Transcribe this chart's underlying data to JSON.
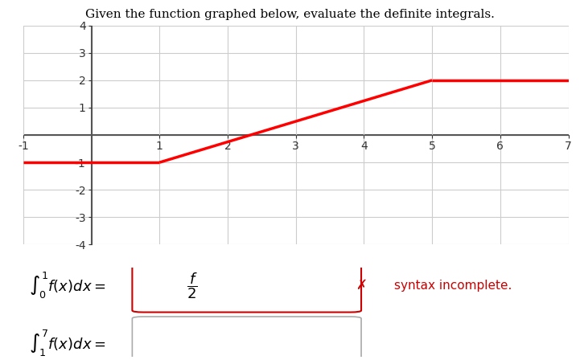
{
  "title": "Given the function graphed below, evaluate the definite integrals.",
  "title_color": "#000000",
  "title_fontsize": 11,
  "graph": {
    "xlim": [
      -1,
      7
    ],
    "ylim": [
      -4,
      4
    ],
    "xticks": [
      -1,
      1,
      2,
      3,
      4,
      5,
      6,
      7
    ],
    "yticks": [
      -4,
      -3,
      -2,
      -1,
      1,
      2,
      3,
      4
    ],
    "segments": [
      {
        "x": [
          -1,
          1
        ],
        "y": [
          -1,
          -1
        ]
      },
      {
        "x": [
          1,
          5
        ],
        "y": [
          -1,
          2
        ]
      },
      {
        "x": [
          5,
          7
        ],
        "y": [
          2,
          2
        ]
      }
    ],
    "line_color": "#ff0000",
    "line_width": 2.5,
    "grid_color": "#cccccc",
    "axis_color": "#555555",
    "bg_color": "#ffffff"
  },
  "integral1": {
    "label": "$\\int_0^1 f(x)dx =$",
    "answer_display": "$\\dfrac{f}{2}$",
    "box_border_color": "#cc0000",
    "error_x_color": "#cc0000",
    "error_text": "syntax incomplete.",
    "error_text_color": "#cc0000"
  },
  "integral2": {
    "label": "$\\int_1^7 f(x)dx =$",
    "box_border_color": "#aaaaaa"
  }
}
